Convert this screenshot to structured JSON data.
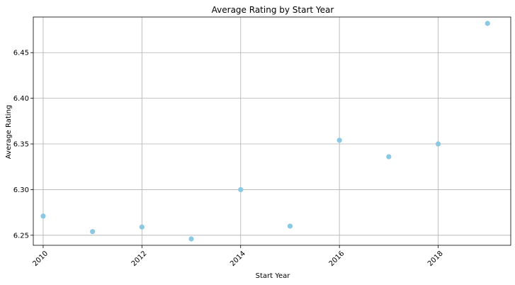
{
  "chart_data": {
    "type": "scatter",
    "title": "Average Rating by Start Year",
    "xlabel": "Start Year",
    "ylabel": "Average Rating",
    "x": [
      2010,
      2011,
      2012,
      2013,
      2014,
      2015,
      2016,
      2017,
      2018,
      2019
    ],
    "y": [
      6.271,
      6.254,
      6.259,
      6.246,
      6.3,
      6.26,
      6.354,
      6.336,
      6.35,
      6.482
    ],
    "xlim": [
      2009.8,
      2019.47
    ],
    "ylim": [
      6.239,
      6.489
    ],
    "xticks": [
      2010,
      2012,
      2014,
      2016,
      2018
    ],
    "xtick_labels": [
      "2010",
      "2012",
      "2014",
      "2016",
      "2018"
    ],
    "yticks": [
      6.25,
      6.3,
      6.35,
      6.4,
      6.45
    ],
    "ytick_labels": [
      "6.25",
      "6.30",
      "6.35",
      "6.40",
      "6.45"
    ],
    "grid": true,
    "marker_color": "#89c9e4"
  }
}
